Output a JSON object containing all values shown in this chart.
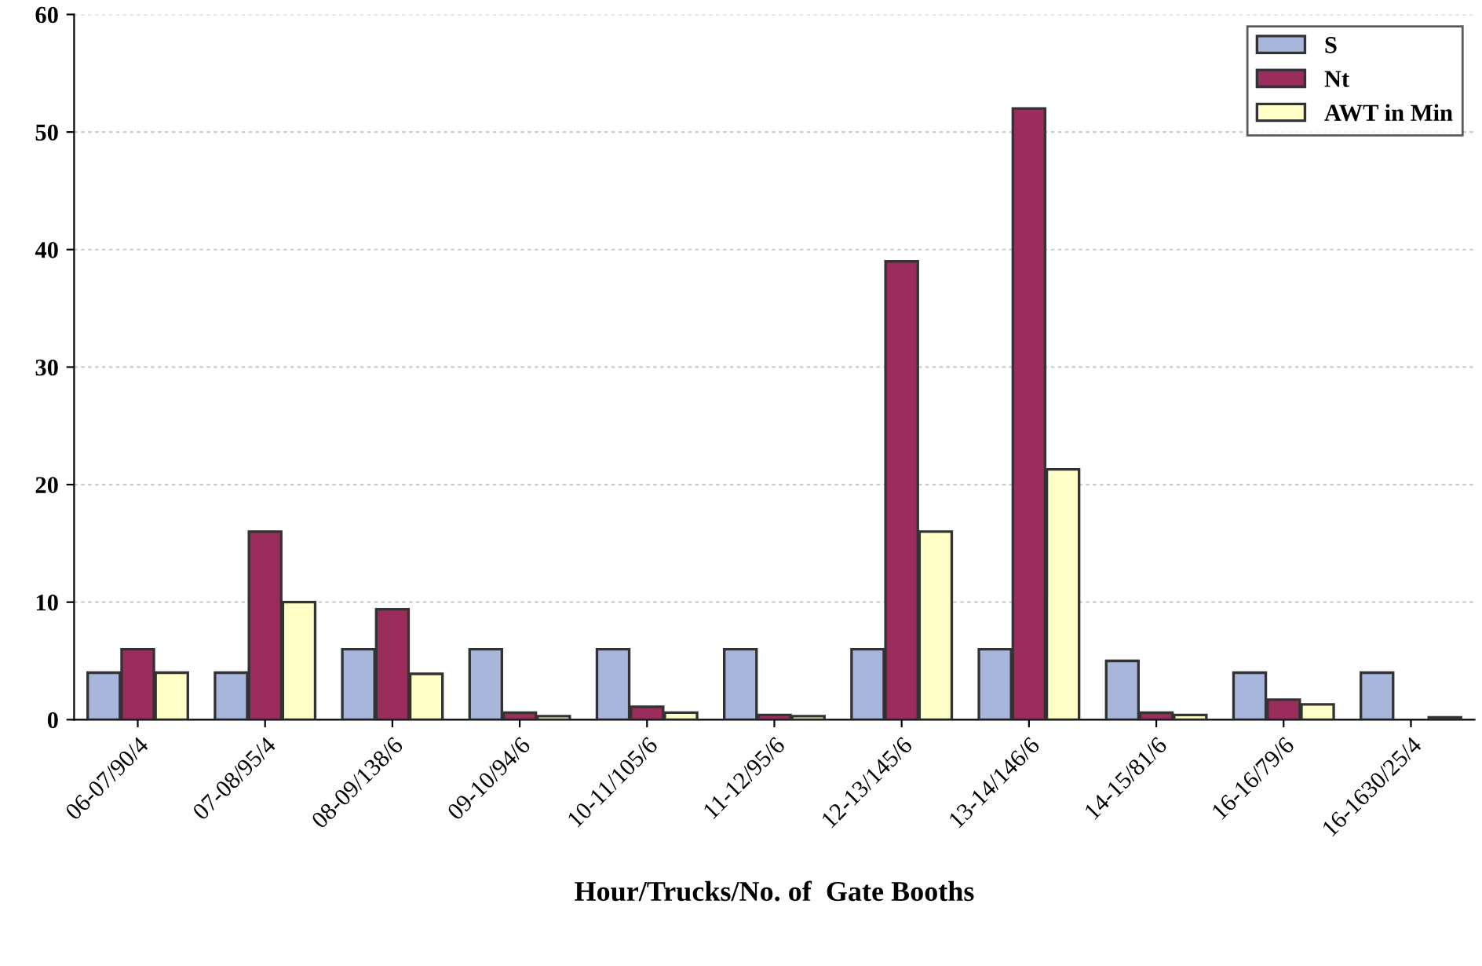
{
  "chart_data": {
    "type": "bar",
    "xlabel": "Hour/Trucks/No. of  Gate Booths",
    "categories": [
      "06-07/90/4",
      "07-08/95/4",
      "08-09/138/6",
      "09-10/94/6",
      "10-11/105/6",
      "11-12/95/6",
      "12-13/145/6",
      "13-14/146/6",
      "14-15/81/6",
      "16-16/79/6",
      "16-1630/25/4"
    ],
    "series": [
      {
        "name": "S",
        "color": "#a9b6dc",
        "values": [
          4,
          4,
          6,
          6,
          6,
          6,
          6,
          6,
          5,
          4,
          4
        ]
      },
      {
        "name": "Nt",
        "color": "#9b2d5c",
        "values": [
          6,
          16,
          9.4,
          0.6,
          1.1,
          0.4,
          39,
          52,
          0.6,
          1.7,
          null
        ]
      },
      {
        "name": "AWT in Min",
        "color": "#ffffc8",
        "values": [
          4,
          10,
          3.9,
          0.3,
          0.6,
          0.3,
          16,
          21.3,
          0.4,
          1.3,
          0.2
        ]
      }
    ],
    "ylim": [
      0,
      60
    ],
    "yticks": [
      0,
      10,
      20,
      30,
      40,
      50,
      60
    ],
    "grid": "y",
    "legend": "top right"
  }
}
